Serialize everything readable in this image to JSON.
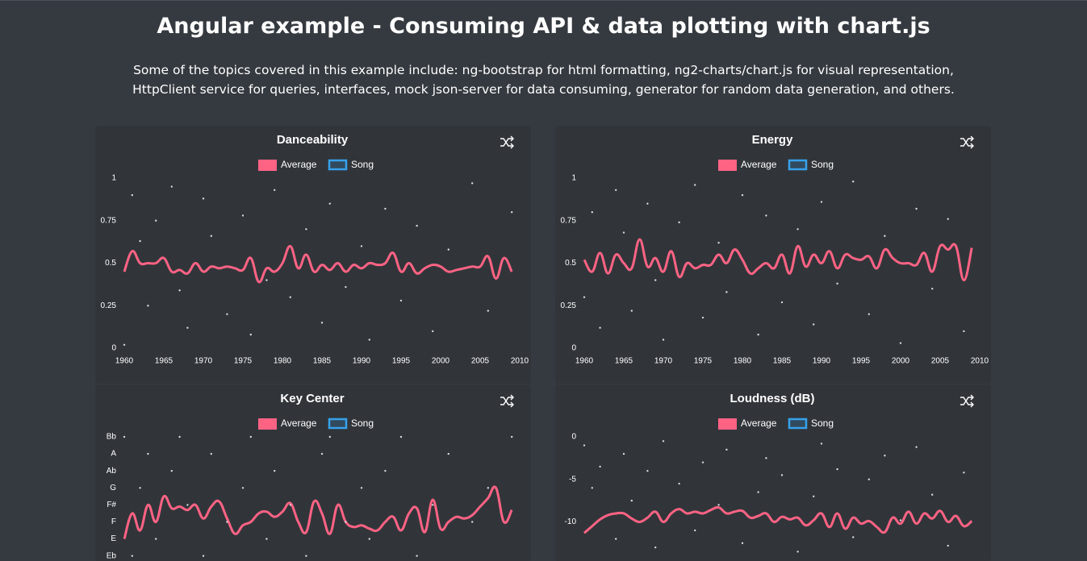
{
  "header": {
    "title": "Angular example - Consuming API & data plotting with chart.js",
    "description": "Some of the topics covered in this example include: ng-bootstrap for html formatting, ng2-charts/chart.js for visual representation, HttpClient service for queries, interfaces, mock json-server for data consuming, generator for random data generation, and others."
  },
  "chart_data": [
    {
      "type": "line",
      "title": "Danceability",
      "x": [
        1960,
        1961,
        1962,
        1963,
        1964,
        1965,
        1966,
        1967,
        1968,
        1969,
        1970,
        1971,
        1972,
        1973,
        1974,
        1975,
        1976,
        1977,
        1978,
        1979,
        1980,
        1981,
        1982,
        1983,
        1984,
        1985,
        1986,
        1987,
        1988,
        1989,
        1990,
        1991,
        1992,
        1993,
        1994,
        1995,
        1996,
        1997,
        1998,
        1999,
        2000,
        2001,
        2002,
        2003,
        2004,
        2005,
        2006,
        2007,
        2008,
        2009
      ],
      "xlim": [
        1960,
        2010
      ],
      "xticks": [
        1960,
        1965,
        1970,
        1975,
        1980,
        1985,
        1990,
        1995,
        2000,
        2005,
        2010
      ],
      "ylim": [
        0,
        1
      ],
      "yticks": [
        0,
        0.25,
        0.5,
        0.75,
        1
      ],
      "series": [
        {
          "name": "Average",
          "color": "#ff6384",
          "values": [
            0.45,
            0.57,
            0.5,
            0.5,
            0.5,
            0.53,
            0.45,
            0.46,
            0.44,
            0.5,
            0.45,
            0.48,
            0.47,
            0.48,
            0.47,
            0.46,
            0.53,
            0.39,
            0.47,
            0.45,
            0.5,
            0.6,
            0.47,
            0.55,
            0.45,
            0.49,
            0.46,
            0.5,
            0.45,
            0.49,
            0.47,
            0.5,
            0.49,
            0.5,
            0.56,
            0.45,
            0.5,
            0.44,
            0.47,
            0.49,
            0.48,
            0.45,
            0.46,
            0.47,
            0.48,
            0.48,
            0.54,
            0.41,
            0.53,
            0.45
          ]
        },
        {
          "name": "Song",
          "type": "scatter",
          "color": "#36a2eb",
          "point_color": "#d9d9d9",
          "x": [
            1960,
            1961,
            1962,
            1963,
            1964,
            1966,
            1967,
            1968,
            1970,
            1971,
            1973,
            1975,
            1976,
            1978,
            1979,
            1981,
            1983,
            1985,
            1986,
            1988,
            1990,
            1991,
            1993,
            1995,
            1997,
            1999,
            2001,
            2004,
            2006,
            2009
          ],
          "values": [
            0.02,
            0.9,
            0.63,
            0.25,
            0.75,
            0.95,
            0.34,
            0.12,
            0.88,
            0.66,
            0.2,
            0.78,
            0.08,
            0.4,
            0.93,
            0.3,
            0.7,
            0.15,
            0.85,
            0.36,
            0.6,
            0.05,
            0.82,
            0.28,
            0.72,
            0.1,
            0.58,
            0.97,
            0.22,
            0.8
          ]
        }
      ]
    },
    {
      "type": "line",
      "title": "Energy",
      "x": [
        1960,
        1961,
        1962,
        1963,
        1964,
        1965,
        1966,
        1967,
        1968,
        1969,
        1970,
        1971,
        1972,
        1973,
        1974,
        1975,
        1976,
        1977,
        1978,
        1979,
        1980,
        1981,
        1982,
        1983,
        1984,
        1985,
        1986,
        1987,
        1988,
        1989,
        1990,
        1991,
        1992,
        1993,
        1994,
        1995,
        1996,
        1997,
        1998,
        1999,
        2000,
        2001,
        2002,
        2003,
        2004,
        2005,
        2006,
        2007,
        2008,
        2009
      ],
      "xlim": [
        1960,
        2010
      ],
      "xticks": [
        1960,
        1965,
        1970,
        1975,
        1980,
        1985,
        1990,
        1995,
        2000,
        2005,
        2010
      ],
      "ylim": [
        0,
        1
      ],
      "yticks": [
        0,
        0.25,
        0.5,
        0.75,
        1
      ],
      "series": [
        {
          "name": "Average",
          "color": "#ff6384",
          "values": [
            0.52,
            0.45,
            0.56,
            0.44,
            0.55,
            0.5,
            0.47,
            0.64,
            0.48,
            0.53,
            0.45,
            0.57,
            0.42,
            0.5,
            0.47,
            0.49,
            0.49,
            0.55,
            0.5,
            0.58,
            0.52,
            0.44,
            0.47,
            0.5,
            0.47,
            0.55,
            0.44,
            0.6,
            0.48,
            0.55,
            0.5,
            0.57,
            0.47,
            0.55,
            0.53,
            0.52,
            0.54,
            0.47,
            0.58,
            0.53,
            0.5,
            0.5,
            0.49,
            0.56,
            0.45,
            0.6,
            0.58,
            0.6,
            0.4,
            0.59
          ]
        },
        {
          "name": "Song",
          "type": "scatter",
          "color": "#36a2eb",
          "point_color": "#d9d9d9",
          "x": [
            1960,
            1961,
            1962,
            1964,
            1965,
            1966,
            1968,
            1969,
            1970,
            1972,
            1974,
            1975,
            1977,
            1978,
            1980,
            1982,
            1983,
            1985,
            1987,
            1989,
            1990,
            1992,
            1994,
            1996,
            1998,
            2000,
            2002,
            2004,
            2006,
            2008
          ],
          "values": [
            0.3,
            0.8,
            0.12,
            0.93,
            0.68,
            0.22,
            0.85,
            0.4,
            0.05,
            0.74,
            0.96,
            0.18,
            0.62,
            0.33,
            0.9,
            0.08,
            0.78,
            0.27,
            0.7,
            0.14,
            0.86,
            0.38,
            0.98,
            0.2,
            0.66,
            0.03,
            0.82,
            0.35,
            0.76,
            0.1
          ]
        }
      ]
    },
    {
      "type": "line",
      "title": "Key Center",
      "x": [
        1960,
        1961,
        1962,
        1963,
        1964,
        1965,
        1966,
        1967,
        1968,
        1969,
        1970,
        1971,
        1972,
        1973,
        1974,
        1975,
        1976,
        1977,
        1978,
        1979,
        1980,
        1981,
        1982,
        1983,
        1984,
        1985,
        1986,
        1987,
        1988,
        1989,
        1990,
        1991,
        1992,
        1993,
        1994,
        1995,
        1996,
        1997,
        1998,
        1999,
        2000,
        2001,
        2002,
        2003,
        2004,
        2005,
        2006,
        2007,
        2008,
        2009
      ],
      "xlim": [
        1960,
        2010
      ],
      "ylim": [
        0,
        10
      ],
      "yticks": [
        {
          "value": 10,
          "label": "Bb"
        },
        {
          "value": 9,
          "label": "A"
        },
        {
          "value": 8,
          "label": "Ab"
        },
        {
          "value": 7,
          "label": "G"
        },
        {
          "value": 6,
          "label": "F#"
        },
        {
          "value": 5,
          "label": "F"
        },
        {
          "value": 4,
          "label": "E"
        },
        {
          "value": 3,
          "label": "Eb"
        }
      ],
      "series": [
        {
          "name": "Average",
          "color": "#ff6384",
          "values": [
            4.0,
            5.5,
            4.5,
            6.0,
            5.0,
            6.5,
            5.8,
            5.9,
            5.7,
            6.0,
            5.2,
            5.9,
            6.2,
            5.2,
            4.3,
            4.8,
            5.0,
            5.5,
            5.6,
            5.3,
            5.6,
            6.1,
            5.0,
            4.4,
            6.2,
            5.5,
            4.3,
            6.0,
            5.0,
            4.7,
            4.8,
            4.6,
            4.5,
            5.0,
            5.3,
            4.5,
            5.5,
            5.8,
            4.4,
            6.3,
            4.6,
            5.0,
            5.3,
            5.2,
            5.4,
            5.9,
            6.4,
            7.0,
            5.0,
            5.7
          ]
        },
        {
          "name": "Song",
          "type": "scatter",
          "color": "#36a2eb",
          "point_color": "#d9d9d9",
          "x": [
            1960,
            1961,
            1962,
            1963,
            1964,
            1966,
            1967,
            1968,
            1970,
            1971,
            1973,
            1975,
            1976,
            1978,
            1979,
            1981,
            1983,
            1985,
            1986,
            1988,
            1990,
            1991,
            1993,
            1995,
            1997,
            1999,
            2001,
            2004,
            2006,
            2009
          ],
          "values": [
            10,
            3,
            7,
            9,
            4,
            8,
            10,
            6,
            3,
            9,
            5,
            7,
            10,
            4,
            8,
            6,
            3,
            9,
            10,
            5,
            7,
            4,
            8,
            10,
            3,
            6,
            9,
            5,
            7,
            10
          ]
        }
      ]
    },
    {
      "type": "line",
      "title": "Loudness (dB)",
      "x": [
        1960,
        1961,
        1962,
        1963,
        1964,
        1965,
        1966,
        1967,
        1968,
        1969,
        1970,
        1971,
        1972,
        1973,
        1974,
        1975,
        1976,
        1977,
        1978,
        1979,
        1980,
        1981,
        1982,
        1983,
        1984,
        1985,
        1986,
        1987,
        1988,
        1989,
        1990,
        1991,
        1992,
        1993,
        1994,
        1995,
        1996,
        1997,
        1998,
        1999,
        2000,
        2001,
        2002,
        2003,
        2004,
        2005,
        2006,
        2007,
        2008,
        2009
      ],
      "xlim": [
        1960,
        2010
      ],
      "ylim": [
        -20,
        0
      ],
      "yticks": [
        0,
        -5,
        -10
      ],
      "series": [
        {
          "name": "Average",
          "color": "#ff6384",
          "values": [
            -11.3,
            -10.5,
            -9.7,
            -9.2,
            -9.0,
            -9.0,
            -9.6,
            -10.0,
            -9.5,
            -8.8,
            -10.0,
            -9.0,
            -8.5,
            -9.0,
            -8.8,
            -9.0,
            -8.6,
            -8.3,
            -9.0,
            -8.8,
            -8.7,
            -9.5,
            -9.3,
            -9.0,
            -10.0,
            -9.4,
            -9.7,
            -9.5,
            -10.4,
            -9.8,
            -9.0,
            -10.6,
            -9.0,
            -10.8,
            -9.5,
            -10.2,
            -9.9,
            -10.6,
            -11.2,
            -9.5,
            -10.2,
            -8.8,
            -10.2,
            -9.0,
            -9.6,
            -8.7,
            -10.0,
            -9.3,
            -10.5,
            -9.9
          ]
        },
        {
          "name": "Song",
          "type": "scatter",
          "color": "#36a2eb",
          "point_color": "#d9d9d9",
          "x": [
            1960,
            1961,
            1962,
            1964,
            1965,
            1966,
            1968,
            1969,
            1970,
            1972,
            1974,
            1975,
            1977,
            1978,
            1980,
            1982,
            1983,
            1985,
            1987,
            1989,
            1990,
            1992,
            1994,
            1996,
            1998,
            2000,
            2002,
            2004,
            2006,
            2008
          ],
          "values": [
            -1,
            -6,
            -3.5,
            -12,
            -2,
            -7.5,
            -4,
            -13,
            -0.5,
            -5.5,
            -11,
            -3,
            -8,
            -1.5,
            -12.5,
            -6.5,
            -2.5,
            -4.5,
            -13.5,
            -7,
            -0.8,
            -3.8,
            -11.8,
            -5,
            -2.2,
            -9.8,
            -1.2,
            -6.8,
            -12.8,
            -4.2
          ]
        }
      ]
    }
  ]
}
